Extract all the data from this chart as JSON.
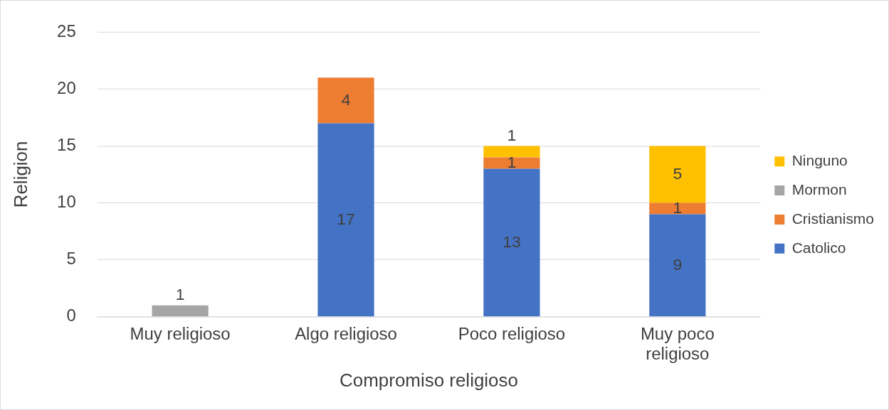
{
  "chart_data": {
    "type": "bar",
    "stacked": true,
    "xlabel": "Compromiso religioso",
    "ylabel": "Religion",
    "categories": [
      "Muy religioso",
      "Algo religioso",
      "Poco religioso",
      "Muy poco religioso"
    ],
    "series": [
      {
        "name": "Catolico",
        "color": "#4472c4",
        "values": [
          null,
          17,
          13,
          9
        ]
      },
      {
        "name": "Cristianismo",
        "color": "#ed7d31",
        "values": [
          null,
          4,
          1,
          1
        ]
      },
      {
        "name": "Mormon",
        "color": "#a5a5a5",
        "values": [
          1,
          null,
          null,
          null
        ]
      },
      {
        "name": "Ninguno",
        "color": "#ffc000",
        "values": [
          null,
          null,
          1,
          5
        ]
      }
    ],
    "ylim": [
      0,
      25
    ],
    "yticks": [
      0,
      5,
      10,
      15,
      20,
      25
    ],
    "grid": "y",
    "legend": "right",
    "data_labels": true
  }
}
